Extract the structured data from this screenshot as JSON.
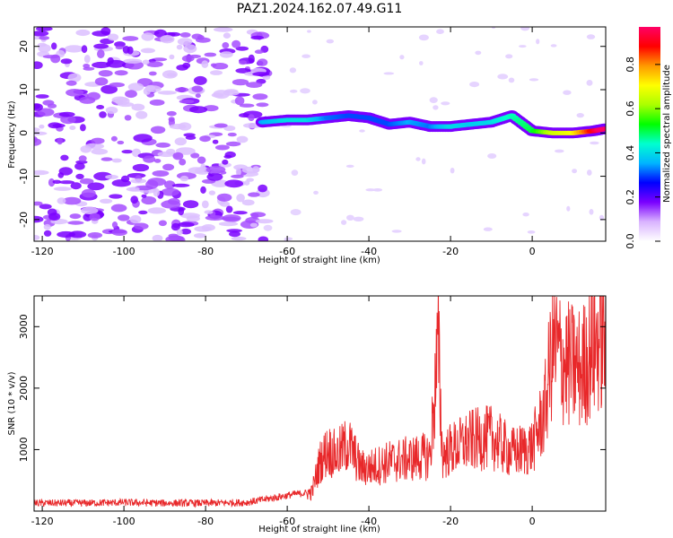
{
  "title": "PAZ1.2024.162.07.49.G11",
  "colors": {
    "snr_line": "#e8282a",
    "spectrogram_low": "#7a00ff",
    "spectrogram_mid": "#00e0ff",
    "spectrogram_high": "#ff1a40"
  },
  "chart_data": [
    {
      "type": "heatmap",
      "title": "",
      "xlabel": "Height of straight line (km)",
      "ylabel": "Frequency (Hz)",
      "xlim": [
        -122,
        18
      ],
      "ylim": [
        -25,
        24.5
      ],
      "x_ticks": [
        "-120",
        "-100",
        "-80",
        "-60",
        "-40",
        "-20",
        "0"
      ],
      "y_ticks": [
        "-20",
        "-10",
        "0",
        "10",
        "20"
      ],
      "colorbar": {
        "label": "Normalized spectral amplitude",
        "range": [
          0,
          0.97
        ],
        "ticks": [
          "0.0",
          "0.2",
          "0.4",
          "0.6",
          "0.8"
        ],
        "colors": [
          "#ffffff",
          "#d9b3ff",
          "#7a00ff",
          "#0000ff",
          "#00b4ff",
          "#00ffd0",
          "#00ff00",
          "#aaff00",
          "#ffff00",
          "#ff9900",
          "#ff0000",
          "#ff0066"
        ]
      },
      "noise_region": {
        "x_range": [
          -122,
          -65
        ],
        "y_range": [
          -25,
          24.5
        ],
        "amplitude": 0.12
      },
      "ridge": {
        "x": [
          -66,
          -60,
          -55,
          -50,
          -45,
          -40,
          -35,
          -30,
          -25,
          -20,
          -15,
          -10,
          -5,
          0,
          5,
          10,
          15,
          18
        ],
        "frequency": [
          2.5,
          3.0,
          3.0,
          3.5,
          4.0,
          3.5,
          2.0,
          2.5,
          1.5,
          1.5,
          2.0,
          2.5,
          4.0,
          0.5,
          0.0,
          0.0,
          0.5,
          1.0
        ],
        "amplitude": [
          0.25,
          0.3,
          0.3,
          0.22,
          0.2,
          0.2,
          0.2,
          0.25,
          0.22,
          0.3,
          0.28,
          0.3,
          0.35,
          0.4,
          0.55,
          0.6,
          0.8,
          0.95
        ]
      }
    },
    {
      "type": "line",
      "title": "",
      "xlabel": "Height of straight line (km)",
      "ylabel": "SNR (10 * v/v)",
      "xlim": [
        -122,
        18
      ],
      "ylim": [
        0,
        3500
      ],
      "x_ticks": [
        "-120",
        "-100",
        "-80",
        "-60",
        "-40",
        "-20",
        "0"
      ],
      "y_ticks": [
        "1000",
        "2000",
        "3000"
      ],
      "series": [
        {
          "x": [
            -122,
            -110,
            -100,
            -90,
            -80,
            -70,
            -62,
            -58,
            -54,
            -52,
            -50,
            -48,
            -45,
            -42,
            -40,
            -35,
            -30,
            -25,
            -23,
            -22,
            -20,
            -15,
            -10,
            -5,
            -2,
            0,
            3,
            5,
            8,
            12,
            15,
            18
          ],
          "y": [
            130,
            130,
            140,
            130,
            130,
            140,
            230,
            280,
            300,
            800,
            1000,
            900,
            1100,
            700,
            700,
            800,
            850,
            900,
            2700,
            900,
            1000,
            1150,
            1200,
            950,
            1000,
            1050,
            1600,
            2700,
            2400,
            2300,
            2700,
            2900
          ]
        }
      ]
    }
  ]
}
